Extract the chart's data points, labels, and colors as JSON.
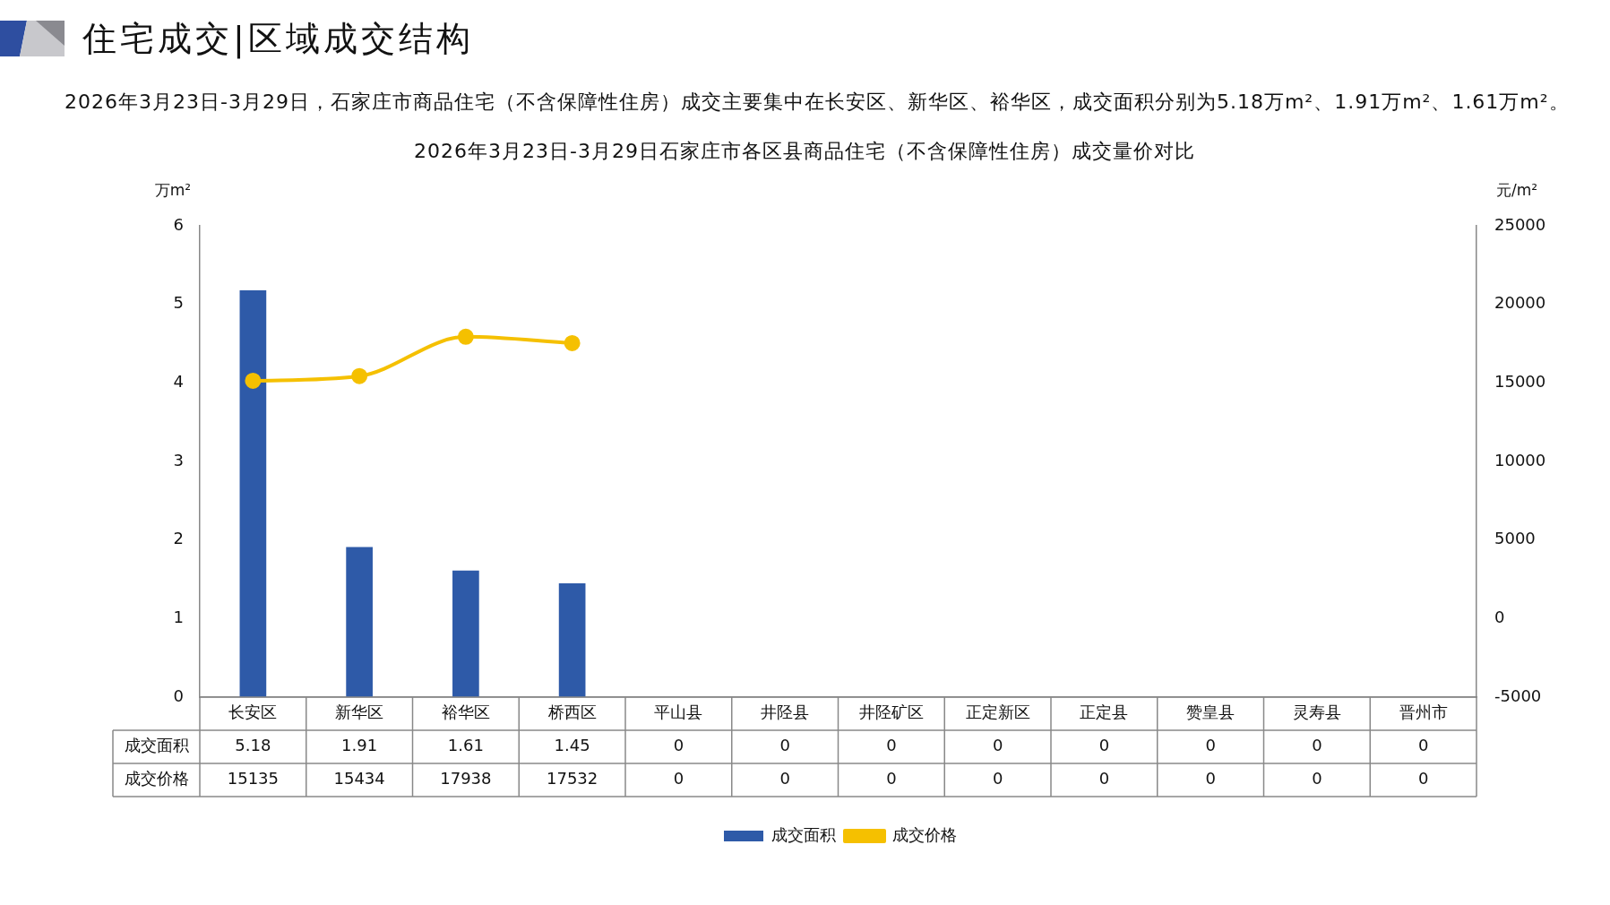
{
  "chart_data": {
    "type": "bar",
    "title": "2026年3月23日-3月29日石家庄市各区县商品住宅（不含保障性住房）成交量价对比",
    "annotations": [
      "住宅成交|区域成交结构",
      "2026年3月23日-3月29日，石家庄市商品住宅（不含保障性住房）成交主要集中在长安区、新华区、裕华区，成交面积分别为5.18万m²、1.91万m²、1.61万m²。"
    ],
    "categories": [
      "长安区",
      "新华区",
      "裕华区",
      "桥西区",
      "平山县",
      "井陉县",
      "井陉矿区",
      "正定新区",
      "正定县",
      "赞皇县",
      "灵寿县",
      "晋州市"
    ],
    "series": [
      {
        "name": "成交面积",
        "color": "#2e5aa8",
        "values": [
          5.18,
          1.91,
          1.61,
          1.45,
          0,
          0,
          0,
          0,
          0,
          0,
          0,
          0
        ],
        "value_labels": [
          "5.18",
          "1.91",
          "1.61",
          "1.45",
          "0",
          "0",
          "0",
          "0",
          "0",
          "0",
          "0",
          "0"
        ]
      },
      {
        "name": "成交价格",
        "type": "line",
        "axis": "y2",
        "color": "#f5c000",
        "values": [
          15135,
          15434,
          17938,
          17532,
          null,
          null,
          null,
          null,
          null,
          null,
          null,
          null
        ],
        "value_labels": [
          "15135",
          "15434",
          "17938",
          "17532",
          "0",
          "0",
          "0",
          "0",
          "0",
          "0",
          "0",
          "0"
        ]
      }
    ],
    "ylabel": "万m²",
    "y2label": "元/m²",
    "ylim": [
      0,
      6
    ],
    "yticks": [
      0,
      1,
      2,
      3,
      4,
      5,
      6
    ],
    "y2lim": [
      -5000,
      25000
    ],
    "y2ticks": [
      -5000,
      0,
      5000,
      10000,
      15000,
      20000,
      25000
    ],
    "legend": "bottom",
    "marker": "circle"
  }
}
